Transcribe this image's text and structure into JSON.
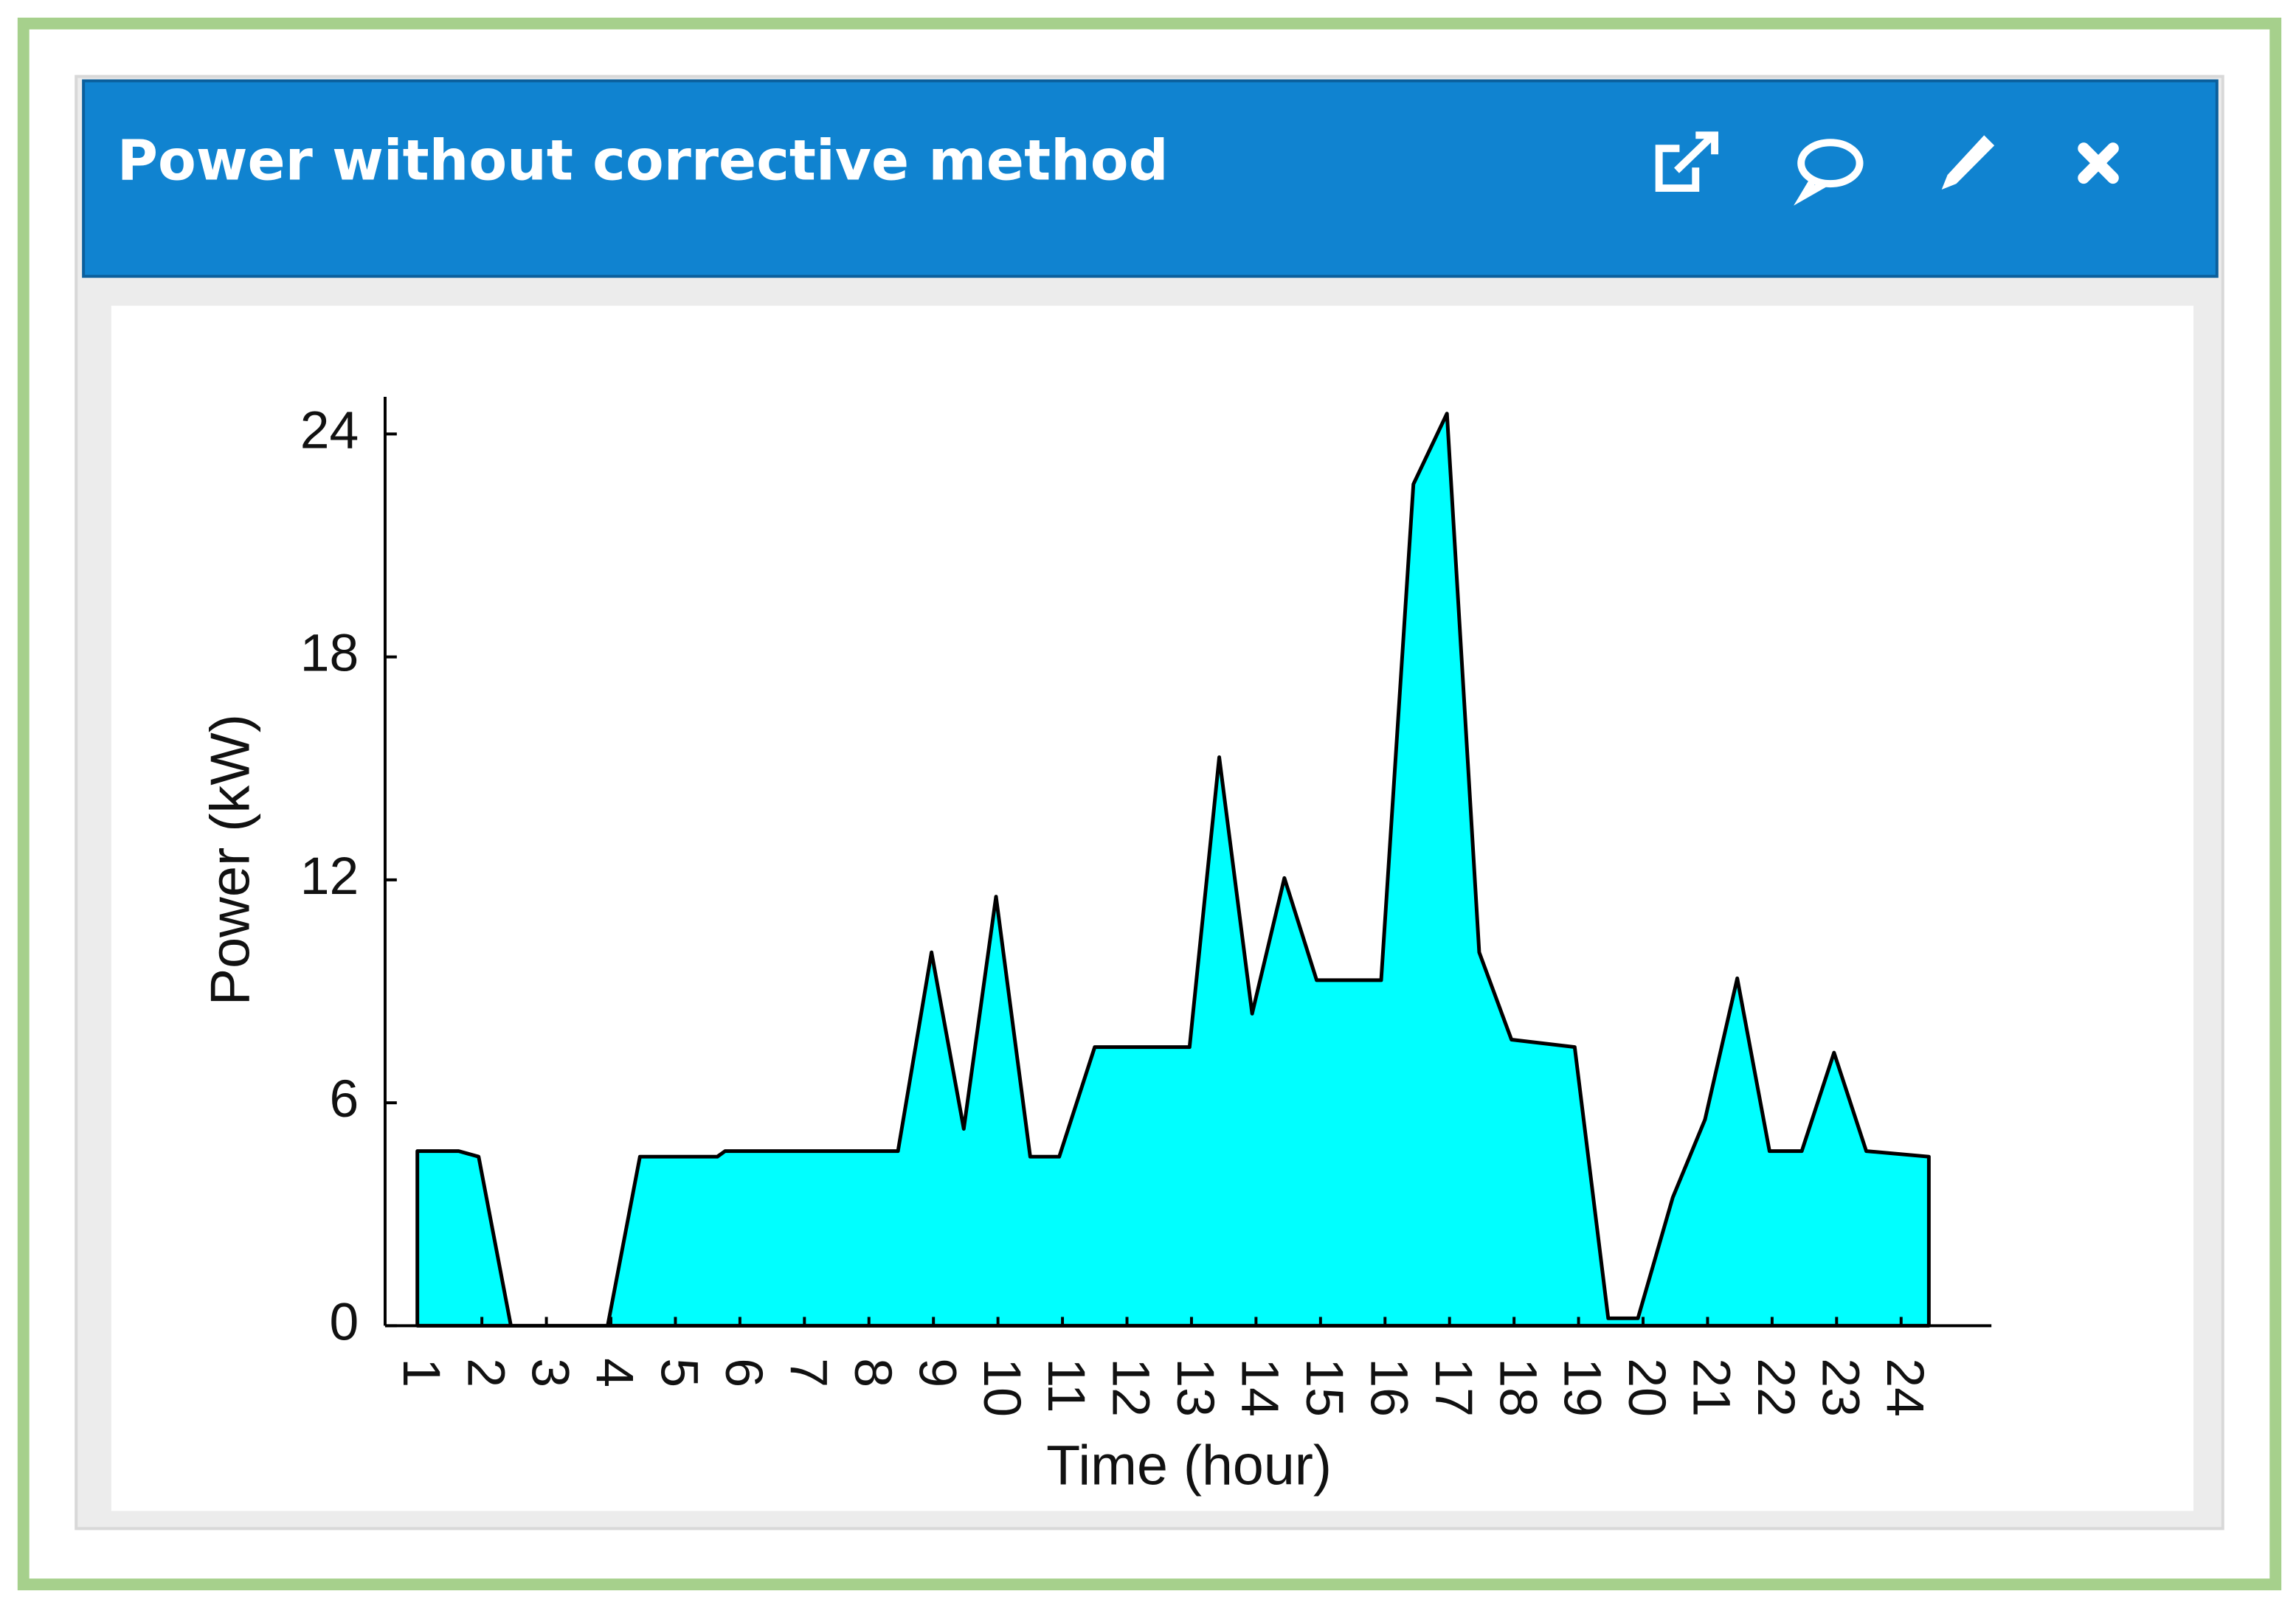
{
  "chart_data": {
    "type": "area",
    "title": "Power without corrective method",
    "x_label": "Time (hour)",
    "y_label": "Power (kW)",
    "x": [
      1,
      1.64,
      1.95,
      2.45,
      3.95,
      4.45,
      5.65,
      5.77,
      8.45,
      8.97,
      9.47,
      9.97,
      10.5,
      10.95,
      11.5,
      12.97,
      13.43,
      13.94,
      14.44,
      14.94,
      15.94,
      16.44,
      16.96,
      17.46,
      17.96,
      18.94,
      19.46,
      19.92,
      20.46,
      20.96,
      21.46,
      21.96,
      22.46,
      22.96,
      23.46,
      24.43
    ],
    "values": [
      4.7,
      4.7,
      4.55,
      0,
      0,
      4.55,
      4.55,
      4.7,
      4.7,
      10.05,
      5.3,
      11.55,
      4.55,
      4.55,
      7.5,
      7.5,
      15.3,
      8.4,
      12.05,
      9.3,
      9.3,
      22.65,
      24.55,
      10.05,
      7.7,
      7.5,
      0.2,
      0.2,
      3.45,
      5.55,
      9.35,
      4.7,
      4.7,
      7.35,
      4.7,
      4.55
    ],
    "color": "#00ffff",
    "line_color": "#000000",
    "xlim": [
      0.5,
      25.4
    ],
    "ylim": [
      0,
      25
    ],
    "xticks": [
      1,
      2,
      3,
      4,
      5,
      6,
      7,
      8,
      9,
      10,
      11,
      12,
      13,
      14,
      15,
      16,
      17,
      18,
      19,
      20,
      21,
      22,
      23,
      24
    ],
    "yticks": [
      0,
      6,
      12,
      18,
      24
    ]
  }
}
